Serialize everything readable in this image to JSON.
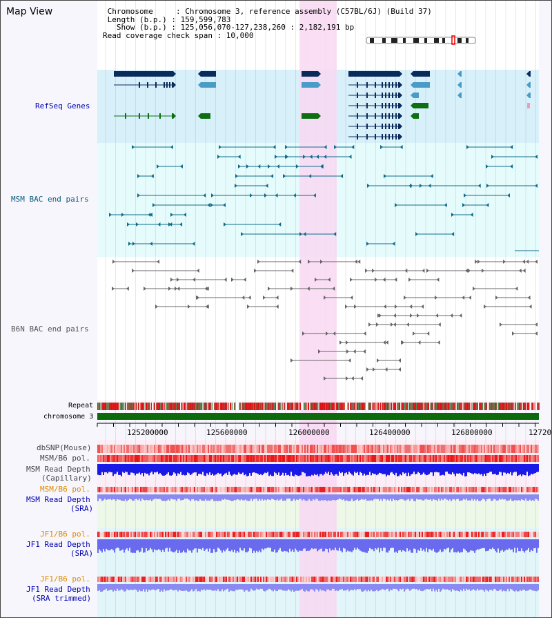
{
  "header": {
    "title": "Map View",
    "info_lines": [
      " Chromosome     : Chromosome 3, reference assembly (C57BL/6J) (Build 37)",
      " Length (b.p.) : 159,599,783",
      "   Show (b.p.) : 125,056,070-127,238,260 : 2,182,191 bp",
      "Read coverage check span : 10,000"
    ]
  },
  "tracks": {
    "refseq": "RefSeq Genes",
    "msm_bac": "MSM BAC end pairs",
    "b6n_bac": "B6N BAC end pairs",
    "repeat": "Repeat",
    "chromosome": "chromosome 3"
  },
  "axis": {
    "ticks": [
      "125200000",
      "125600000",
      "126000000",
      "126400000",
      "126800000",
      "12720"
    ]
  },
  "bottom_tracks": {
    "dbsnp": "dbSNP(Mouse)",
    "msm_b6_pol_1": "MSM/B6 pol.",
    "msm_depth_cap_1": "MSM Read Depth",
    "msm_depth_cap_2": "(Capillary)",
    "msm_b6_pol_2": "MSM/B6 pol.",
    "msm_depth_sra_1": "MSM Read Depth",
    "msm_depth_sra_2": "(SRA)",
    "jf1_b6_pol_1": "JF1/B6 pol.",
    "jf1_depth_sra_1": "JF1 Read Depth",
    "jf1_depth_sra_2": "(SRA)",
    "jf1_b6_pol_2": "JF1/B6 pol.",
    "jf1_depth_trim_1": "JF1 Read Depth",
    "jf1_depth_trim_2": "(SRA trimmed)"
  },
  "colors": {
    "refseq_bg": "#d8f0fa",
    "msm_bg": "#e6fbfb",
    "highlight": "#f8d8f2",
    "gene_dark": "#0a2a5c",
    "gene_mid": "#4a9cc8",
    "gene_green": "#0e6e12",
    "msm_line": "#0e6b8a",
    "b6n_line": "#666666",
    "chrom_band": "#0c6a0c",
    "depth_dark": "#1a1ae6",
    "depth_light": "#8a8af2",
    "pol_red": "#f01818",
    "label_blue": "#0000b0",
    "label_teal": "#0a5a7a",
    "label_orange": "#e08a00"
  }
}
